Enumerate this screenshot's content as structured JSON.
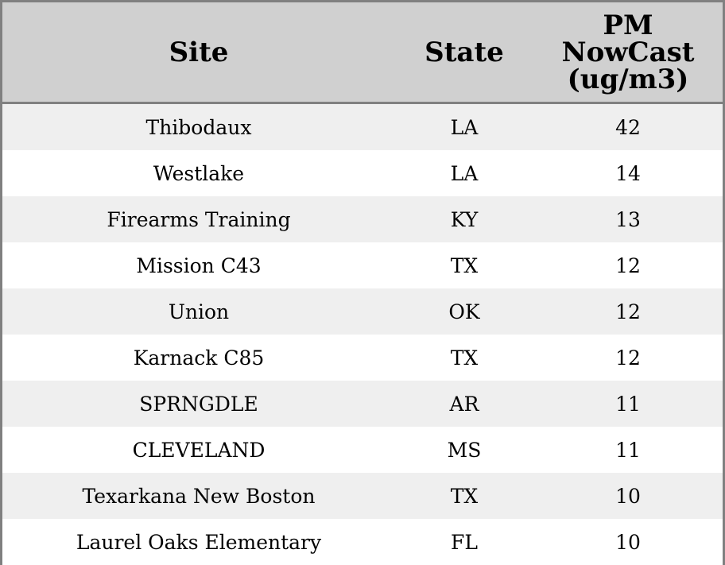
{
  "chart_data": {
    "type": "table",
    "columns": [
      "Site",
      "State",
      "PM NowCast (ug/m3)"
    ],
    "header_lines": {
      "site": [
        "Site"
      ],
      "state": [
        "State"
      ],
      "pm": [
        "PM",
        "NowCast",
        "(ug/m3)"
      ]
    },
    "rows": [
      {
        "site": "Thibodaux",
        "state": "LA",
        "pm": 42
      },
      {
        "site": "Westlake",
        "state": "LA",
        "pm": 14
      },
      {
        "site": "Firearms Training",
        "state": "KY",
        "pm": 13
      },
      {
        "site": "Mission C43",
        "state": "TX",
        "pm": 12
      },
      {
        "site": "Union",
        "state": "OK",
        "pm": 12
      },
      {
        "site": "Karnack C85",
        "state": "TX",
        "pm": 12
      },
      {
        "site": "SPRNGDLE",
        "state": "AR",
        "pm": 11
      },
      {
        "site": "CLEVELAND",
        "state": "MS",
        "pm": 11
      },
      {
        "site": "Texarkana New Boston",
        "state": "TX",
        "pm": 10
      },
      {
        "site": "Laurel Oaks Elementary",
        "state": "FL",
        "pm": 10
      }
    ]
  },
  "colors": {
    "header_bg": "#d0d0d0",
    "row_alt_bg": "#efefef",
    "row_bg": "#ffffff",
    "border": "#808080",
    "text": "#000000"
  }
}
